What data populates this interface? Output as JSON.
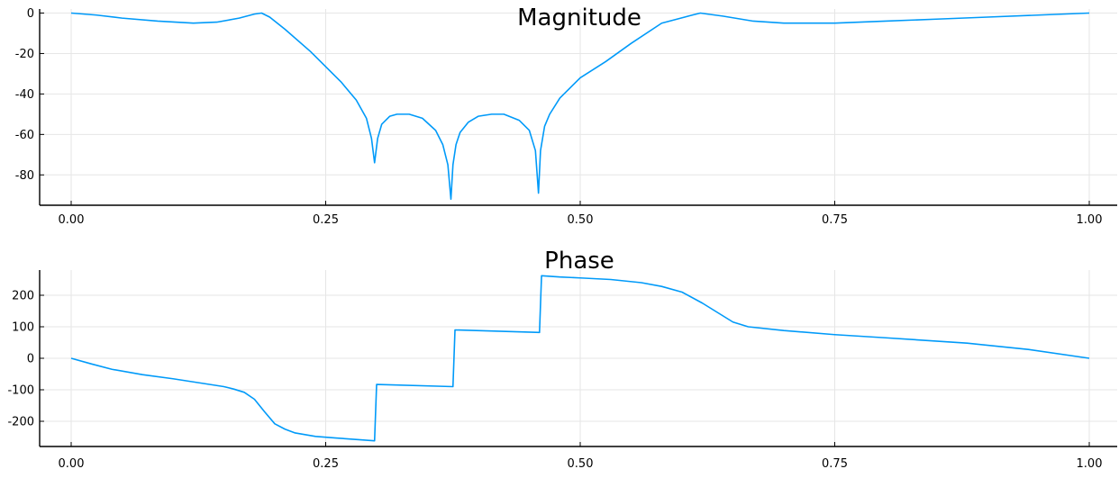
{
  "chart_data": [
    {
      "type": "line",
      "title": "Magnitude",
      "xlim": [
        0,
        1
      ],
      "ylim": [
        -95,
        2
      ],
      "x_ticks": [
        0,
        0.25,
        0.5,
        0.75,
        1.0
      ],
      "x_tick_labels": [
        "0.00",
        "0.25",
        "0.50",
        "0.75",
        "1.00"
      ],
      "y_ticks": [
        0,
        -20,
        -40,
        -60,
        -80
      ],
      "y_tick_labels": [
        "0",
        "-20",
        "-40",
        "-60",
        "-80"
      ],
      "grid": true,
      "color": "#009AF9",
      "series": [
        {
          "x": [
            0.0,
            0.025,
            0.05,
            0.085,
            0.12,
            0.143,
            0.165,
            0.18,
            0.187,
            0.195,
            0.21,
            0.235,
            0.265,
            0.28,
            0.29,
            0.295,
            0.298,
            0.301,
            0.305,
            0.313,
            0.32,
            0.332,
            0.345,
            0.358,
            0.365,
            0.37,
            0.373,
            0.375,
            0.378,
            0.382,
            0.39,
            0.4,
            0.413,
            0.425,
            0.44,
            0.45,
            0.456,
            0.459,
            0.461,
            0.465,
            0.47,
            0.48,
            0.49,
            0.5,
            0.525,
            0.55,
            0.58,
            0.61,
            0.618,
            0.625,
            0.64,
            0.67,
            0.7,
            0.75,
            0.8,
            0.85,
            0.9,
            0.95,
            1.0
          ],
          "y": [
            0,
            -1,
            -2.5,
            -4,
            -5,
            -4.5,
            -2.5,
            -0.5,
            0,
            -2,
            -8,
            -19,
            -34,
            -43,
            -52,
            -62,
            -74,
            -62,
            -55,
            -51,
            -50,
            -50,
            -52,
            -58,
            -65,
            -75,
            -92,
            -75,
            -65,
            -59,
            -54,
            -51,
            -50,
            -50,
            -53,
            -58,
            -68,
            -89,
            -68,
            -56,
            -50,
            -42,
            -37,
            -32,
            -24,
            -15,
            -5,
            -1,
            0,
            -0.5,
            -1.5,
            -4,
            -5,
            -5,
            -4,
            -3,
            -2,
            -1,
            0
          ]
        }
      ]
    },
    {
      "type": "line",
      "title": "Phase",
      "xlim": [
        0,
        1
      ],
      "ylim": [
        -280,
        280
      ],
      "x_ticks": [
        0,
        0.25,
        0.5,
        0.75,
        1.0
      ],
      "x_tick_labels": [
        "0.00",
        "0.25",
        "0.50",
        "0.75",
        "1.00"
      ],
      "y_ticks": [
        200,
        100,
        0,
        -100,
        -200
      ],
      "y_tick_labels": [
        "200",
        "100",
        "0",
        "-100",
        "-200"
      ],
      "grid": true,
      "color": "#009AF9",
      "series": [
        {
          "x": [
            0.0,
            0.02,
            0.04,
            0.07,
            0.1,
            0.13,
            0.15,
            0.16,
            0.17,
            0.18,
            0.19,
            0.2,
            0.21,
            0.22,
            0.24,
            0.26,
            0.298,
            0.3,
            0.375,
            0.377,
            0.46,
            0.462,
            0.48,
            0.5,
            0.53,
            0.56,
            0.58,
            0.6,
            0.62,
            0.635,
            0.65,
            0.665,
            0.7,
            0.75,
            0.8,
            0.88,
            0.94,
            1.0
          ],
          "y": [
            0,
            -18,
            -35,
            -52,
            -65,
            -80,
            -90,
            -98,
            -108,
            -130,
            -170,
            -208,
            -225,
            -237,
            -248,
            -253,
            -262,
            -83,
            -90,
            90,
            82,
            262,
            258,
            255,
            250,
            240,
            228,
            210,
            175,
            145,
            115,
            100,
            88,
            75,
            65,
            48,
            28,
            0
          ]
        }
      ]
    }
  ]
}
